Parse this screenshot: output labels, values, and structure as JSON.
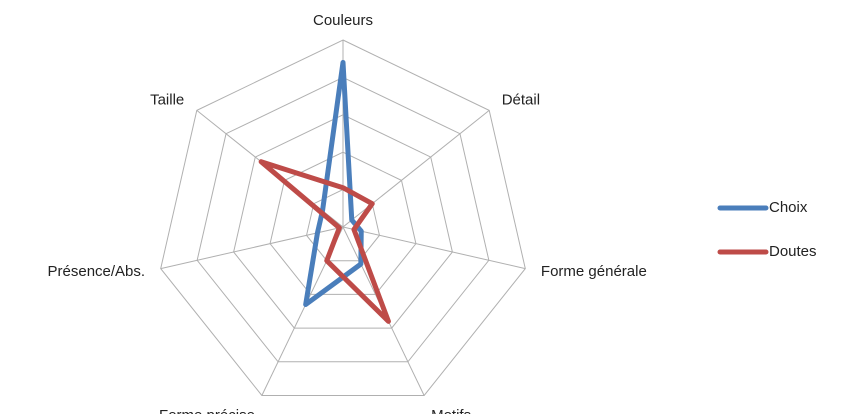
{
  "chart_data": {
    "type": "radar",
    "categories": [
      "Couleurs",
      "Détail",
      "Forme générale",
      "Motifs",
      "Forme précise",
      "Présence/Abs.",
      "Taille"
    ],
    "series": [
      {
        "name": "Choix",
        "color": "#4a7ebb",
        "values": [
          4.4,
          0.3,
          0.5,
          1.1,
          2.3,
          0.7,
          0.7
        ]
      },
      {
        "name": "Doutes",
        "color": "#be4b48",
        "values": [
          1.05,
          1.0,
          0.3,
          2.8,
          1.0,
          0.1,
          2.8
        ]
      }
    ],
    "rlim": [
      0,
      5
    ],
    "rticks": [
      1,
      2,
      3,
      4,
      5
    ],
    "grid": true,
    "legend": "right"
  }
}
